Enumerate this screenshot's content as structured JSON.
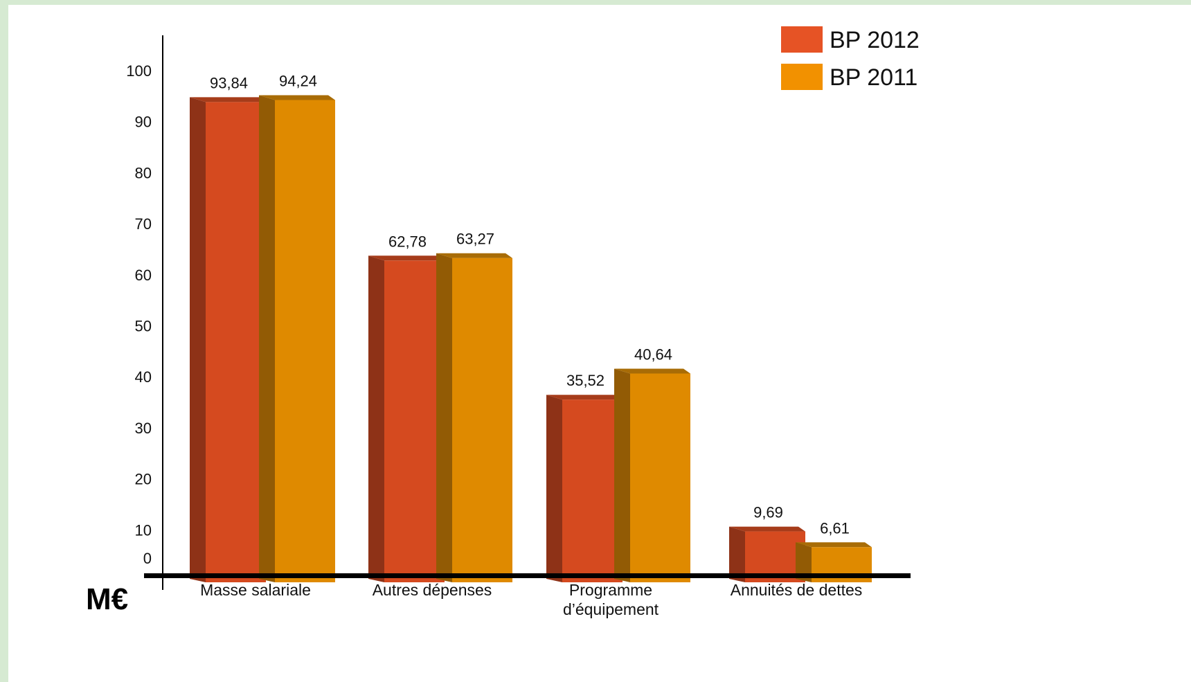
{
  "chart_data": {
    "type": "bar",
    "unit_label": "M€",
    "categories": [
      [
        "Masse salariale"
      ],
      [
        "Autres dépenses"
      ],
      [
        "Programme",
        "d’équipement"
      ],
      [
        "Annuités de dettes"
      ]
    ],
    "series": [
      {
        "name": "BP 2012",
        "values": [
          93.84,
          62.78,
          35.52,
          9.69
        ],
        "labels": [
          "93,84",
          "62,78",
          "35,52",
          "9,69"
        ],
        "color": "#d54a1f",
        "side_color": "#8e3217",
        "top_color": "#a63c1a",
        "legend_color": "#e65325"
      },
      {
        "name": "BP 2011",
        "values": [
          94.24,
          63.27,
          40.64,
          6.61
        ],
        "labels": [
          "94,24",
          "63,27",
          "40,64",
          "6,61"
        ],
        "color": "#df8a00",
        "side_color": "#925b05",
        "top_color": "#a86c06",
        "legend_color": "#f29100"
      }
    ],
    "y_ticks": [
      0,
      10,
      20,
      30,
      40,
      50,
      60,
      70,
      80,
      90,
      100
    ],
    "ylim": [
      0,
      100
    ],
    "legend_position": "top-right",
    "grid": false
  }
}
